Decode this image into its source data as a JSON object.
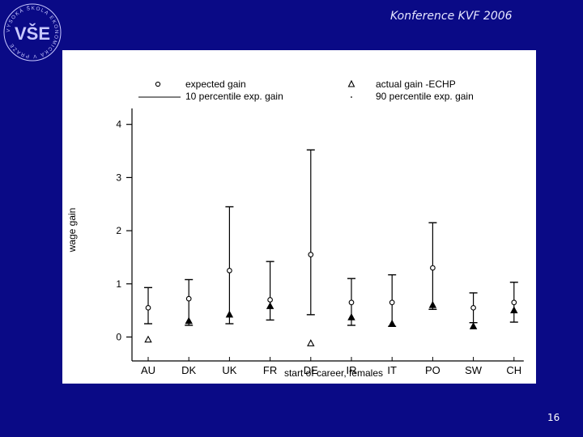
{
  "header": {
    "title": "Konference KVF 2006",
    "logo_letters": "VŠE",
    "logo_ring_text": "VYSOKÁ ŠKOLA EKONOMICKÁ V PRAZE"
  },
  "footer": {
    "page_number": "16"
  },
  "colors": {
    "background": "#0a0a86",
    "panel": "#ffffff",
    "ink": "#000000",
    "logo": "#c8c8ff"
  },
  "chart_data": {
    "type": "scatter",
    "xlabel": "start of career, females",
    "ylabel": "wage gain",
    "ylim": [
      -0.45,
      4.3
    ],
    "yticks": [
      0,
      1,
      2,
      3,
      4
    ],
    "categories": [
      "AU",
      "DK",
      "UK",
      "FR",
      "DE",
      "IR",
      "IT",
      "PO",
      "SW",
      "CH"
    ],
    "legend": {
      "expected": "expected gain",
      "actual": "actual gain -ECHP",
      "p10": "10 percentile exp. gain",
      "p90": "90 percentile exp. gain",
      "placement": "top"
    },
    "series": [
      {
        "name": "expected gain",
        "marker": "circle",
        "values": [
          0.55,
          0.72,
          1.25,
          0.7,
          1.55,
          0.65,
          0.65,
          1.3,
          0.55,
          0.65
        ]
      },
      {
        "name": "actual gain -ECHP",
        "marker": "triangle",
        "values": [
          -0.05,
          0.3,
          0.42,
          0.58,
          -0.12,
          0.37,
          0.25,
          0.6,
          0.2,
          0.5
        ]
      },
      {
        "name": "10 percentile exp. gain",
        "marker": "bar-low",
        "values": [
          0.25,
          0.22,
          0.25,
          0.32,
          0.42,
          0.22,
          0.2,
          0.52,
          0.27,
          0.28
        ]
      },
      {
        "name": "90 percentile exp. gain",
        "marker": "bar-high",
        "values": [
          0.93,
          1.08,
          2.45,
          1.42,
          3.52,
          1.1,
          1.17,
          2.15,
          0.83,
          1.03
        ]
      }
    ]
  }
}
